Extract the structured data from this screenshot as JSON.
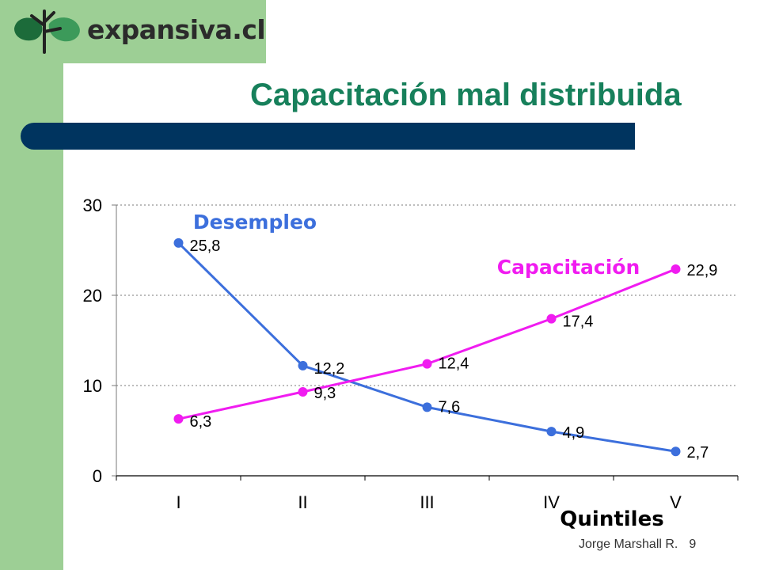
{
  "logo": {
    "text": "expansiva.cl",
    "icon": "tree-logo-icon"
  },
  "title": "Capacitación mal distribuida",
  "footer": {
    "author": "Jorge Marshall R.",
    "page": "9"
  },
  "colors": {
    "side_band": "#9dcf95",
    "title": "#17805b",
    "title_bar": "#00345f",
    "desempleo": "#3c6fdc",
    "capacitacion": "#f01cf0"
  },
  "chart_data": {
    "type": "line",
    "categories": [
      "I",
      "II",
      "III",
      "IV",
      "V"
    ],
    "xlabel": "Quintiles",
    "ylabel": "",
    "ylim": [
      0,
      30
    ],
    "yticks": [
      "0",
      "10",
      "20",
      "30"
    ],
    "grid": true,
    "series": [
      {
        "name": "Desempleo",
        "values": [
          25.8,
          12.2,
          7.6,
          4.9,
          2.7
        ],
        "labels": [
          "25,8",
          "12,2",
          "7,6",
          "4,9",
          "2,7"
        ],
        "color": "#3c6fdc"
      },
      {
        "name": "Capacitación",
        "values": [
          6.3,
          9.3,
          12.4,
          17.4,
          22.9
        ],
        "labels": [
          "6,3",
          "9,3",
          "12,4",
          "17,4",
          "22,9"
        ],
        "color": "#f01cf0"
      }
    ]
  }
}
